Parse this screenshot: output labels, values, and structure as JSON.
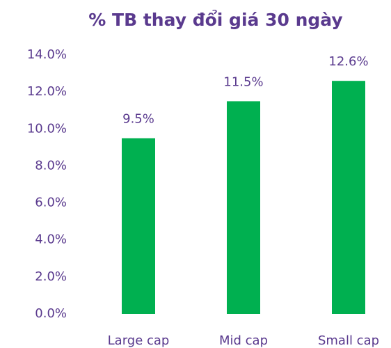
{
  "chart_data": {
    "type": "bar",
    "title": "% TB thay đổi giá 30 ngày",
    "categories": [
      "Large cap",
      "Mid cap",
      "Small cap"
    ],
    "values": [
      9.5,
      11.5,
      12.6
    ],
    "value_labels": [
      "9.5%",
      "11.5%",
      "12.6%"
    ],
    "color": "#00b050",
    "ylim": [
      0,
      14
    ],
    "yticks": [
      {
        "value": 0,
        "label": "0.0%"
      },
      {
        "value": 2,
        "label": "2.0%"
      },
      {
        "value": 4,
        "label": "4.0%"
      },
      {
        "value": 6,
        "label": "6.0%"
      },
      {
        "value": 8,
        "label": "8.0%"
      },
      {
        "value": 10,
        "label": "10.0%"
      },
      {
        "value": 12,
        "label": "12.0%"
      },
      {
        "value": 14,
        "label": "14.0%"
      }
    ],
    "grid": false
  }
}
